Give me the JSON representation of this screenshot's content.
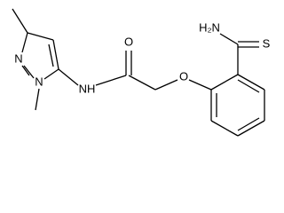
{
  "nodes": [
    {
      "label": "N"
    },
    {
      "label": "N"
    },
    {
      "label": "NH"
    },
    {
      "label": "O"
    },
    {
      "label": "O"
    },
    {
      "label": "H₂N"
    },
    {
      "label": "S"
    }
  ]
}
